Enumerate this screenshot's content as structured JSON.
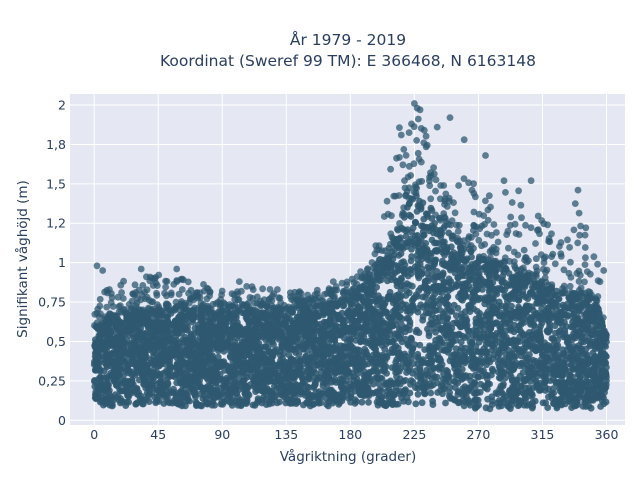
{
  "chart_data": {
    "type": "scatter",
    "title_lines": [
      "År 1979 - 2019",
      "Koordinat (Sweref 99 TM): E 366468, N 6163148"
    ],
    "xlabel": "Vågriktning (grader)",
    "ylabel": "Signifikant våghöjd (m)",
    "xlim": [
      -17,
      373
    ],
    "ylim": [
      -0.03,
      2.07
    ],
    "x_ticks": [
      0,
      45,
      90,
      135,
      180,
      225,
      270,
      315,
      360
    ],
    "y_ticks": [
      {
        "value": 0,
        "label": "0"
      },
      {
        "value": 0.25,
        "label": "0,25"
      },
      {
        "value": 0.5,
        "label": "0,5"
      },
      {
        "value": 0.75,
        "label": "0,75"
      },
      {
        "value": 1,
        "label": "1"
      },
      {
        "value": 1.25,
        "label": "1,2"
      },
      {
        "value": 1.5,
        "label": "1,5"
      },
      {
        "value": 1.75,
        "label": "1,8"
      },
      {
        "value": 2,
        "label": "2"
      }
    ],
    "grid": true,
    "marker_color": "#2e5870",
    "background_color": "#e5e8f2",
    "density_envelope": {
      "direction_deg": [
        0,
        10,
        20,
        30,
        45,
        60,
        90,
        120,
        135,
        150,
        170,
        180,
        190,
        200,
        205,
        210,
        215,
        220,
        225,
        230,
        235,
        240,
        250,
        260,
        270,
        280,
        290,
        300,
        310,
        315,
        320,
        330,
        340,
        350,
        355,
        360
      ],
      "min_height_m": [
        0.1,
        0.09,
        0.09,
        0.09,
        0.09,
        0.09,
        0.09,
        0.09,
        0.09,
        0.09,
        0.09,
        0.09,
        0.09,
        0.09,
        0.09,
        0.09,
        0.09,
        0.09,
        0.08,
        0.08,
        0.08,
        0.08,
        0.08,
        0.08,
        0.07,
        0.07,
        0.07,
        0.07,
        0.07,
        0.07,
        0.07,
        0.07,
        0.07,
        0.07,
        0.08,
        0.1
      ],
      "dense_max_height_m": [
        0.6,
        0.65,
        0.68,
        0.7,
        0.7,
        0.7,
        0.7,
        0.7,
        0.7,
        0.72,
        0.74,
        0.78,
        0.85,
        0.95,
        1.05,
        1.15,
        1.25,
        1.35,
        1.45,
        1.42,
        1.38,
        1.3,
        1.2,
        1.1,
        1.05,
        1.0,
        0.98,
        0.95,
        0.9,
        0.88,
        0.85,
        0.82,
        0.8,
        0.78,
        0.7,
        0.55
      ],
      "sparse_max_height_m": [
        0.75,
        0.85,
        0.9,
        0.88,
        0.95,
        0.9,
        0.85,
        0.85,
        0.82,
        0.82,
        0.85,
        0.9,
        1.0,
        1.15,
        1.4,
        1.7,
        1.9,
        1.95,
        2.02,
        1.9,
        1.75,
        1.65,
        1.6,
        1.55,
        1.5,
        1.45,
        1.5,
        1.45,
        1.35,
        1.3,
        1.25,
        1.2,
        1.45,
        1.1,
        1.0,
        0.7
      ]
    },
    "notable_points": [
      {
        "x": 225,
        "y": 2.01
      },
      {
        "x": 227,
        "y": 1.98
      },
      {
        "x": 229,
        "y": 1.97
      },
      {
        "x": 250,
        "y": 1.92
      },
      {
        "x": 223,
        "y": 1.88
      },
      {
        "x": 232,
        "y": 1.84
      },
      {
        "x": 241,
        "y": 1.86
      },
      {
        "x": 260,
        "y": 1.78
      },
      {
        "x": 275,
        "y": 1.68
      },
      {
        "x": 288,
        "y": 1.52
      },
      {
        "x": 307,
        "y": 1.52
      },
      {
        "x": 340,
        "y": 1.46
      },
      {
        "x": 2,
        "y": 0.98
      },
      {
        "x": 6,
        "y": 0.95
      },
      {
        "x": 33,
        "y": 0.96
      },
      {
        "x": 58,
        "y": 0.96
      },
      {
        "x": 102,
        "y": 0.88
      },
      {
        "x": 168,
        "y": 0.88
      },
      {
        "x": 200,
        "y": 1.08
      },
      {
        "x": 358,
        "y": 0.95
      }
    ]
  }
}
